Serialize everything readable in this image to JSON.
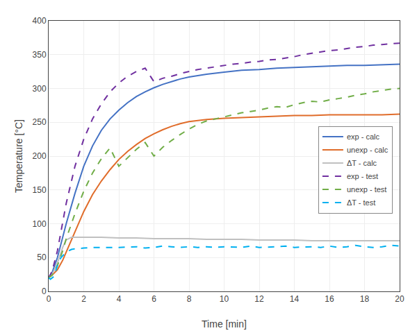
{
  "chart_data": {
    "type": "line",
    "xlabel": "Time [min]",
    "ylabel": "Temperature [°C]",
    "xlim": [
      0,
      20
    ],
    "ylim": [
      0,
      400
    ],
    "xticks": [
      0,
      2,
      4,
      6,
      8,
      10,
      12,
      14,
      16,
      18,
      20
    ],
    "yticks": [
      0,
      50,
      100,
      150,
      200,
      250,
      300,
      350,
      400
    ],
    "grid": true,
    "legend": "center right",
    "series": [
      {
        "name": "exp - calc",
        "color": "#4472C4",
        "line_style": "solid",
        "x": [
          0,
          0.2,
          0.5,
          0.8,
          1.0,
          1.5,
          2.0,
          2.5,
          3.0,
          3.5,
          4.0,
          4.5,
          5.0,
          5.5,
          6.0,
          6.5,
          7.0,
          7.5,
          8.0,
          9.0,
          10.0,
          11.0,
          12.0,
          13.0,
          14.0,
          15.0,
          16.0,
          17.0,
          18.0,
          19.0,
          20.0
        ],
        "values": [
          20,
          28,
          50,
          80,
          100,
          145,
          185,
          215,
          238,
          255,
          268,
          279,
          288,
          295,
          301,
          306,
          310,
          314,
          317,
          321,
          324,
          327,
          328,
          330,
          331,
          332,
          333,
          334,
          334,
          335,
          336
        ]
      },
      {
        "name": "unexp - calc",
        "color": "#E06C2A",
        "line_style": "solid",
        "x": [
          0,
          0.2,
          0.5,
          0.8,
          1.0,
          1.5,
          2.0,
          2.5,
          3.0,
          3.5,
          4.0,
          4.5,
          5.0,
          5.5,
          6.0,
          6.5,
          7.0,
          7.5,
          8.0,
          9.0,
          10.0,
          11.0,
          12.0,
          13.0,
          14.0,
          15.0,
          16.0,
          17.0,
          18.0,
          19.0,
          20.0
        ],
        "values": [
          20,
          24,
          32,
          46,
          58,
          88,
          118,
          143,
          163,
          180,
          195,
          207,
          217,
          226,
          233,
          239,
          244,
          248,
          251,
          254,
          256,
          257,
          258,
          259,
          260,
          260,
          261,
          261,
          261,
          261,
          262
        ]
      },
      {
        "name": "ΔT - calc",
        "color": "#C0C0C0",
        "line_style": "solid",
        "x": [
          0,
          0.2,
          0.5,
          0.8,
          1.0,
          1.3,
          1.5,
          2.0,
          2.5,
          3.0,
          4.0,
          5.0,
          6.0,
          7.0,
          8.0,
          9.0,
          10.0,
          11.0,
          12.0,
          13.0,
          14.0,
          15.0,
          16.0,
          17.0,
          18.0,
          19.0,
          20.0
        ],
        "values": [
          20,
          25,
          42,
          65,
          76,
          80,
          80,
          80,
          80,
          80,
          79,
          79,
          78,
          78,
          78,
          77,
          77,
          77,
          76,
          76,
          76,
          75,
          75,
          75,
          75,
          75,
          75
        ]
      },
      {
        "name": "exp - test",
        "color": "#7030A0",
        "line_style": "dashed",
        "x": [
          0,
          0.2,
          0.5,
          0.8,
          1.0,
          1.5,
          2.0,
          2.5,
          3.0,
          3.5,
          4.0,
          4.5,
          5.0,
          5.5,
          6.0,
          6.5,
          7.0,
          7.5,
          8.0,
          8.5,
          9.0,
          9.5,
          10.0,
          10.5,
          11.0,
          11.5,
          12.0,
          12.5,
          13.0,
          13.5,
          14.0,
          14.5,
          15.0,
          15.5,
          16.0,
          16.5,
          17.0,
          17.5,
          18.0,
          18.5,
          19.0,
          19.5,
          20.0
        ],
        "values": [
          20,
          30,
          60,
          100,
          130,
          185,
          225,
          255,
          277,
          295,
          308,
          318,
          325,
          330,
          310,
          315,
          318,
          322,
          325,
          328,
          330,
          332,
          334,
          336,
          337,
          339,
          340,
          342,
          343,
          345,
          347,
          350,
          352,
          354,
          356,
          357,
          359,
          361,
          362,
          364,
          365,
          366,
          367
        ]
      },
      {
        "name": "unexp - test",
        "color": "#70AD47",
        "line_style": "dashed",
        "x": [
          0,
          0.2,
          0.5,
          0.8,
          1.0,
          1.5,
          2.0,
          2.5,
          3.0,
          3.5,
          4.0,
          4.5,
          5.0,
          5.5,
          6.0,
          6.5,
          7.0,
          7.5,
          8.0,
          8.5,
          9.0,
          9.5,
          10.0,
          10.5,
          11.0,
          11.5,
          12.0,
          12.5,
          13.0,
          13.5,
          14.0,
          14.5,
          15.0,
          15.5,
          16.0,
          16.5,
          17.0,
          17.5,
          18.0,
          18.5,
          19.0,
          19.5,
          20.0
        ],
        "values": [
          20,
          24,
          38,
          60,
          78,
          115,
          148,
          175,
          196,
          212,
          185,
          198,
          210,
          220,
          200,
          213,
          223,
          232,
          240,
          247,
          252,
          255,
          258,
          261,
          264,
          266,
          268,
          271,
          273,
          272,
          276,
          279,
          281,
          280,
          283,
          285,
          287,
          290,
          292,
          295,
          297,
          299,
          300
        ]
      },
      {
        "name": "ΔT - test",
        "color": "#00B0F0",
        "line_style": "dashed",
        "x": [
          0,
          0.1,
          0.3,
          0.5,
          0.7,
          1.0,
          1.3,
          1.5,
          2.0,
          2.5,
          3.0,
          4.0,
          5.0,
          5.5,
          6.0,
          6.5,
          7.0,
          7.5,
          8.0,
          8.5,
          9.0,
          9.5,
          10.0,
          11.0,
          11.5,
          12.0,
          13.0,
          13.5,
          14.0,
          15.0,
          15.5,
          16.0,
          16.5,
          17.0,
          17.5,
          18.0,
          18.5,
          19.0,
          19.5,
          20.0
        ],
        "values": [
          20,
          18,
          22,
          38,
          50,
          58,
          62,
          63,
          64,
          65,
          65,
          65,
          66,
          64,
          65,
          67,
          66,
          65,
          66,
          65,
          66,
          65,
          66,
          65,
          67,
          65,
          66,
          67,
          65,
          66,
          65,
          67,
          65,
          66,
          68,
          66,
          65,
          66,
          68,
          67
        ]
      }
    ]
  }
}
